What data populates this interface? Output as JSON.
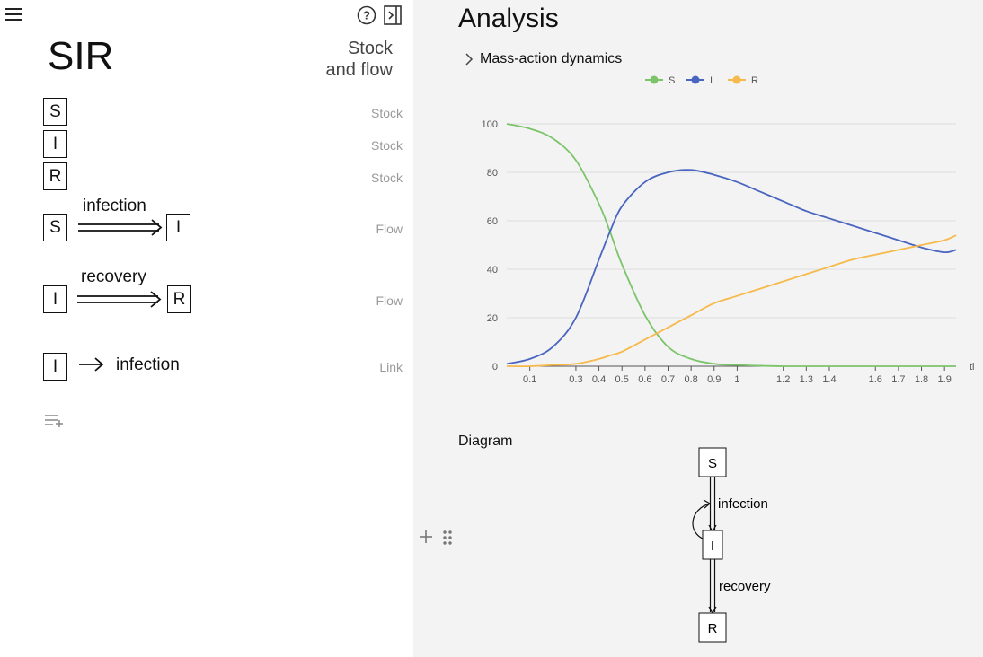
{
  "notebook": {
    "title": "SIR",
    "header_label_line1": "Stock",
    "header_label_line2": "and flow",
    "items": [
      {
        "kind": "Stock",
        "name": "S"
      },
      {
        "kind": "Stock",
        "name": "I"
      },
      {
        "kind": "Stock",
        "name": "R"
      },
      {
        "kind": "Flow",
        "name": "infection",
        "source": "S",
        "target": "I"
      },
      {
        "kind": "Flow",
        "name": "recovery",
        "source": "I",
        "target": "R"
      },
      {
        "kind": "Link",
        "source": "I",
        "target": "infection"
      }
    ]
  },
  "analysis": {
    "title": "Analysis",
    "section": "Mass-action dynamics",
    "diagram_label": "Diagram",
    "diagram": {
      "nodes": [
        "S",
        "I",
        "R"
      ],
      "flow_labels": [
        "infection",
        "recovery"
      ]
    }
  },
  "colors": {
    "S": "#7cc46a",
    "I": "#4a65c0",
    "R": "#f6b94a"
  },
  "icons": [
    "menu-icon",
    "help-icon",
    "collapse-panel-icon",
    "add-cell-icon",
    "add-icon",
    "drag-handle-icon"
  ],
  "chart_data": {
    "type": "line",
    "xlabel": "ti",
    "ylabel": "",
    "xlim": [
      0,
      1.95
    ],
    "ylim": [
      0,
      100
    ],
    "x_ticks": [
      "0.1",
      "0.3",
      "0.4",
      "0.5",
      "0.6",
      "0.7",
      "0.8",
      "0.9",
      "1",
      "1.2",
      "1.3",
      "1.4",
      "1.6",
      "1.7",
      "1.8",
      "1.9"
    ],
    "y_ticks": [
      "0",
      "20",
      "40",
      "60",
      "80",
      "100"
    ],
    "legend_position": "top-center",
    "x": [
      0,
      0.1,
      0.2,
      0.3,
      0.4,
      0.45,
      0.5,
      0.6,
      0.7,
      0.8,
      0.9,
      1.0,
      1.1,
      1.2,
      1.3,
      1.4,
      1.5,
      1.6,
      1.7,
      1.8,
      1.9,
      1.95
    ],
    "series": [
      {
        "name": "S",
        "values": [
          100,
          98,
          94,
          85,
          67,
          55,
          42,
          21,
          8,
          3,
          1,
          0.5,
          0.2,
          0,
          0,
          0,
          0,
          0,
          0,
          0,
          0,
          0
        ]
      },
      {
        "name": "I",
        "values": [
          1,
          3,
          8,
          20,
          44,
          56,
          66,
          76,
          80,
          81,
          79,
          76,
          72,
          68,
          64,
          61,
          58,
          55,
          52,
          49,
          47,
          48
        ]
      },
      {
        "name": "R",
        "values": [
          0,
          0,
          0.5,
          1,
          3,
          4.5,
          6,
          11,
          16,
          21,
          26,
          29,
          32,
          35,
          38,
          41,
          44,
          46,
          48,
          50,
          52,
          54
        ]
      }
    ]
  }
}
